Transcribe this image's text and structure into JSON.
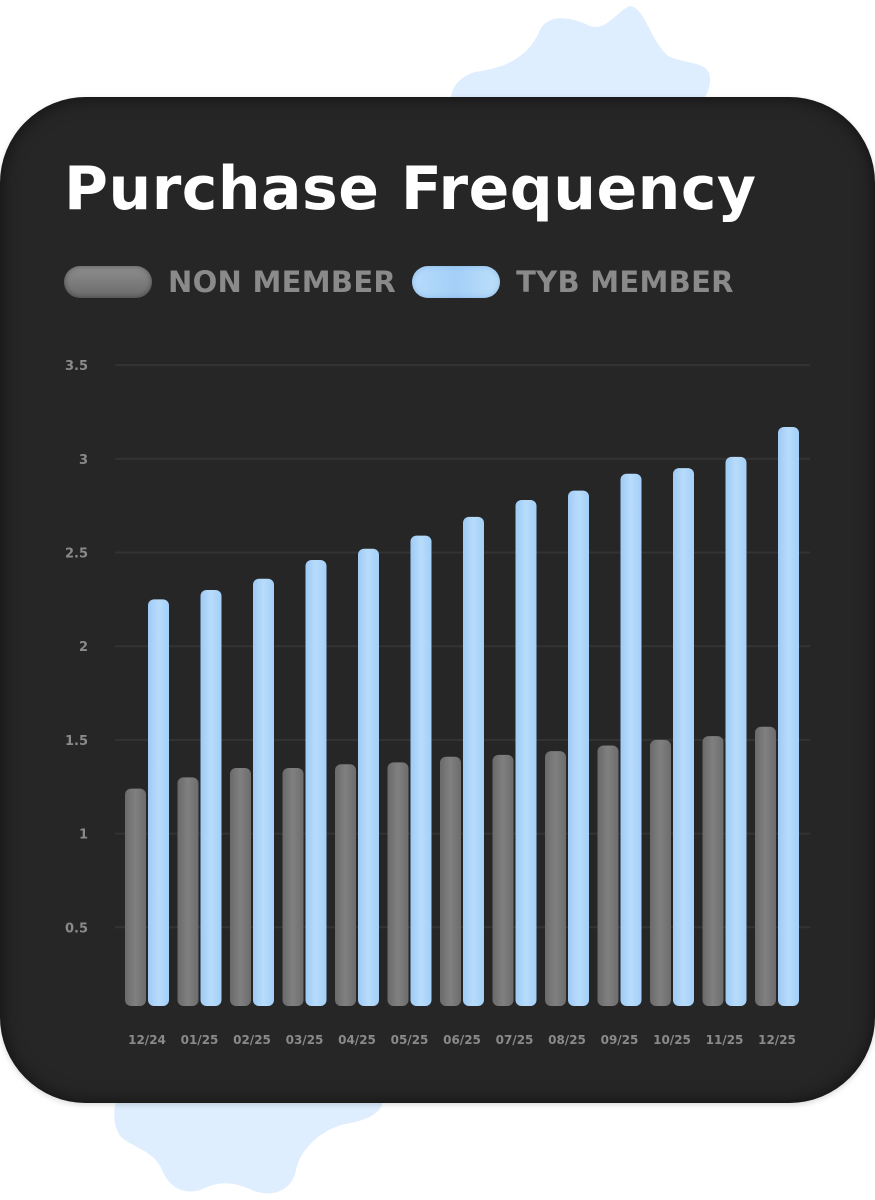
{
  "chart_data": {
    "type": "bar",
    "title": "Purchase Frequency",
    "categories": [
      "12/24",
      "01/25",
      "02/25",
      "03/25",
      "04/25",
      "05/25",
      "06/25",
      "07/25",
      "08/25",
      "09/25",
      "10/25",
      "11/25",
      "12/25"
    ],
    "series": [
      {
        "name": "NON MEMBER",
        "values": [
          1.24,
          1.3,
          1.35,
          1.35,
          1.37,
          1.38,
          1.41,
          1.42,
          1.44,
          1.47,
          1.5,
          1.52,
          1.57
        ]
      },
      {
        "name": "TYB MEMBER",
        "values": [
          2.25,
          2.3,
          2.36,
          2.46,
          2.52,
          2.59,
          2.69,
          2.78,
          2.83,
          2.92,
          2.95,
          3.01,
          3.17
        ]
      }
    ],
    "ylim": [
      0,
      3.5
    ],
    "yticks": [
      "0.5",
      "1",
      "1.5",
      "2",
      "2.5",
      "3",
      "3.5"
    ],
    "grid": true,
    "legend_position": "top-left",
    "colors": {
      "non_member": "#7a7a7a",
      "tyb_member": "#a8d2f8",
      "background": "#262626",
      "text": "#ffffff",
      "muted_text": "#8a8a8a",
      "grid": "#333333",
      "decor": "#deeefe"
    }
  }
}
